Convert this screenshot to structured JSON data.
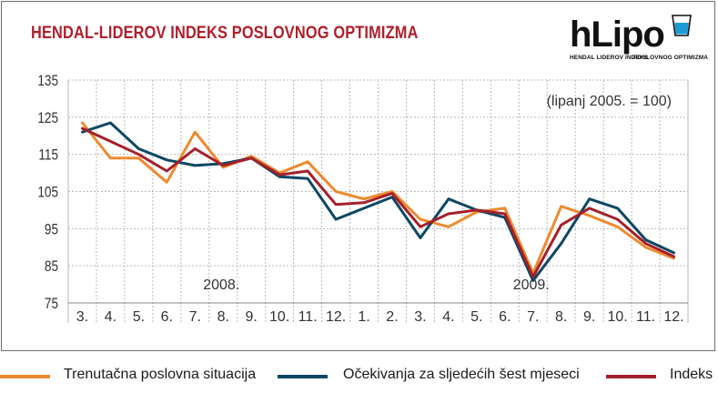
{
  "title": "HENDAL-LIDEROV INDEKS POSLOVNOG OPTIMIZMA",
  "logo": {
    "name": "hLipo",
    "sub_left": "HENDAL LIDEROV INDEKS",
    "sub_right": "POSLOVNOG OPTIMIZMA"
  },
  "colors": {
    "title": "#b01e2a",
    "grid": "#b9b9b9",
    "trenutacna": "#ee8a2e",
    "ocekivanja": "#0d4763",
    "indeks": "#a4202b"
  },
  "chart_data": {
    "type": "line",
    "title": "HENDAL-LIDEROV INDEKS POSLOVNOG OPTIMIZMA",
    "annotation": "(lipanj 2005. = 100)",
    "year_labels": [
      {
        "label": "2008.",
        "category_index": 5
      },
      {
        "label": "2009.",
        "category_index": 16
      }
    ],
    "categories": [
      "3.",
      "4.",
      "5.",
      "6.",
      "7.",
      "8.",
      "9.",
      "10.",
      "11.",
      "12.",
      "1.",
      "2.",
      "3.",
      "4.",
      "5.",
      "6.",
      "7.",
      "8.",
      "9.",
      "10.",
      "11.",
      "12."
    ],
    "yticks": [
      75,
      85,
      95,
      105,
      115,
      125,
      135
    ],
    "ylim": [
      75,
      135
    ],
    "grid": true,
    "legend_position": "bottom",
    "series": [
      {
        "name": "Trenutačna poslovna situacija",
        "color_key": "trenutacna",
        "values": [
          123.5,
          114,
          114,
          107.5,
          121,
          111.5,
          114.5,
          110,
          113,
          105,
          103,
          105,
          97.5,
          95.5,
          99.5,
          100.5,
          83,
          101,
          98.5,
          95.5,
          90,
          87
        ]
      },
      {
        "name": "Očekivanja za sljedećih šest mjeseci",
        "color_key": "ocekivanja",
        "values": [
          121,
          123.5,
          116.5,
          113.5,
          112,
          112.5,
          114,
          109,
          108.5,
          97.5,
          100.5,
          103.5,
          92.5,
          103,
          100,
          98,
          81,
          91,
          103,
          100.5,
          92,
          88.5
        ]
      },
      {
        "name": "Indeks",
        "color_key": "indeks",
        "values": [
          122,
          118.5,
          115,
          110.5,
          116.5,
          112,
          114,
          109.5,
          110.5,
          101.5,
          102,
          104.5,
          95.5,
          99,
          100,
          99,
          82,
          96,
          100.5,
          97.5,
          91,
          87.5
        ]
      }
    ]
  },
  "legend": [
    {
      "label": "Trenutačna poslovna situacija",
      "color_key": "trenutacna"
    },
    {
      "label": "Očekivanja za sljedećih šest mjeseci",
      "color_key": "ocekivanja"
    },
    {
      "label": "Indeks",
      "color_key": "indeks"
    }
  ]
}
